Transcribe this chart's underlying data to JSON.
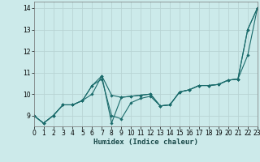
{
  "xlabel": "Humidex (Indice chaleur)",
  "bg_color": "#cceaea",
  "grid_color": "#b8d4d4",
  "line_color": "#1a6b6b",
  "xlim": [
    0,
    23
  ],
  "ylim": [
    8.5,
    14.3
  ],
  "yticks": [
    9,
    10,
    11,
    12,
    13,
    14
  ],
  "xticks": [
    0,
    1,
    2,
    3,
    4,
    5,
    6,
    7,
    8,
    9,
    10,
    11,
    12,
    13,
    14,
    15,
    16,
    17,
    18,
    19,
    20,
    21,
    22,
    23
  ],
  "series": [
    {
      "x": [
        0,
        1,
        2,
        3,
        4,
        5,
        6,
        7,
        8,
        9,
        10,
        11,
        12,
        13,
        14,
        15,
        16,
        17,
        18,
        19,
        20,
        21,
        22,
        23
      ],
      "y": [
        9.0,
        8.65,
        9.0,
        9.5,
        9.5,
        9.7,
        10.4,
        10.85,
        9.95,
        9.85,
        9.9,
        9.95,
        10.0,
        9.45,
        9.5,
        10.1,
        10.2,
        10.4,
        10.4,
        10.45,
        10.65,
        10.7,
        13.0,
        14.0
      ],
      "marker": true
    },
    {
      "x": [
        0,
        1,
        2,
        3,
        4,
        5,
        6,
        7,
        8,
        9,
        10,
        11,
        12,
        13,
        14,
        15,
        16,
        17,
        18,
        19,
        20,
        21,
        22,
        23
      ],
      "y": [
        9.0,
        8.65,
        9.0,
        9.5,
        9.5,
        9.7,
        10.4,
        10.7,
        9.0,
        8.85,
        9.6,
        9.8,
        9.9,
        9.45,
        9.5,
        10.1,
        10.2,
        10.4,
        10.4,
        10.45,
        10.65,
        10.7,
        13.0,
        14.0
      ],
      "marker": true
    },
    {
      "x": [
        0,
        1,
        2,
        3,
        4,
        5,
        6,
        7,
        8,
        9,
        10,
        11,
        12,
        13,
        14,
        15,
        16,
        17,
        18,
        19,
        20,
        21,
        22,
        23
      ],
      "y": [
        9.0,
        8.65,
        9.0,
        9.5,
        9.5,
        9.7,
        10.0,
        10.85,
        8.65,
        9.85,
        9.9,
        9.95,
        10.0,
        9.45,
        9.5,
        10.1,
        10.2,
        10.4,
        10.4,
        10.45,
        10.65,
        10.7,
        11.8,
        14.0
      ],
      "marker": true
    }
  ],
  "figwidth": 3.2,
  "figheight": 2.0,
  "dpi": 100
}
